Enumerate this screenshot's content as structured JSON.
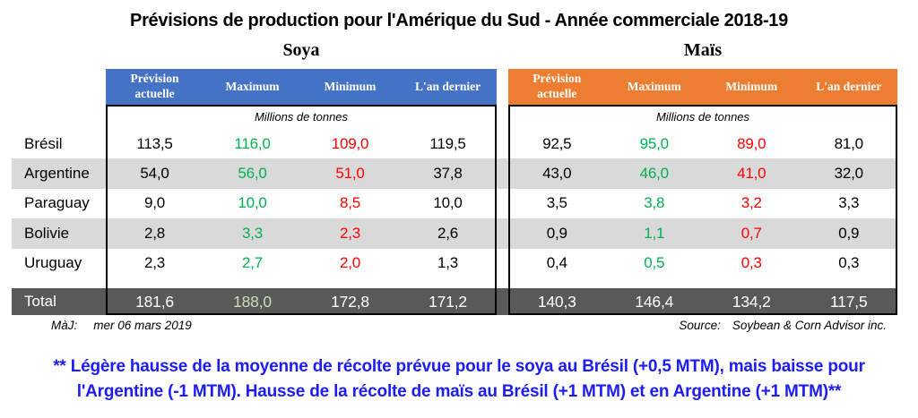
{
  "title": "Prévisions de production pour l'Amérique du Sud - Année commerciale 2018-19",
  "sections": [
    {
      "name": "Soya",
      "accent": "#4472C4",
      "columns": [
        "Prévision actuelle",
        "Maximum",
        "Minimum",
        "L'an dernier"
      ]
    },
    {
      "name": "Maïs",
      "accent": "#ED7D31",
      "columns": [
        "Prévision actuelle",
        "Maximum",
        "Minimum",
        "L'an dernier"
      ]
    }
  ],
  "unit_label": "Millions de tonnes",
  "rows": [
    {
      "label": "Brésil",
      "soya": [
        "113,5",
        "116,0",
        "109,0",
        "119,5"
      ],
      "mais": [
        "92,5",
        "95,0",
        "89,0",
        "81,0"
      ]
    },
    {
      "label": "Argentine",
      "soya": [
        "54,0",
        "56,0",
        "51,0",
        "37,8"
      ],
      "mais": [
        "43,0",
        "46,0",
        "41,0",
        "32,0"
      ]
    },
    {
      "label": "Paraguay",
      "soya": [
        "9,0",
        "10,0",
        "8,5",
        "10,0"
      ],
      "mais": [
        "3,5",
        "3,8",
        "3,2",
        "3,3"
      ]
    },
    {
      "label": "Bolivie",
      "soya": [
        "2,8",
        "3,3",
        "2,3",
        "2,6"
      ],
      "mais": [
        "0,9",
        "1,1",
        "0,7",
        "0,9"
      ]
    },
    {
      "label": "Uruguay",
      "soya": [
        "2,3",
        "2,7",
        "2,0",
        "1,3"
      ],
      "mais": [
        "0,4",
        "0,5",
        "0,3",
        "0,3"
      ]
    }
  ],
  "total": {
    "label": "Total",
    "soya": [
      "181,6",
      "188,0",
      "172,8",
      "171,2"
    ],
    "mais": [
      "140,3",
      "146,4",
      "134,2",
      "117,5"
    ]
  },
  "total_colors": {
    "soya": [
      "#FFFFFF",
      "#C6E0B4",
      "#FFFFFF",
      "#FFFFFF"
    ],
    "mais": [
      "#FFFFFF",
      "#FFFFFF",
      "#FFFFFF",
      "#FFFFFF"
    ]
  },
  "footer": {
    "updated_label": "MàJ:",
    "updated_value": "mer 06 mars 2019",
    "source_label": "Source:",
    "source_value": "Soybean & Corn Advisor inc."
  },
  "note": {
    "line1": "** Légère hausse de la moyenne de récolte prévue pour le soya au Brésil (+0,5 MTM), mais baisse pour",
    "line2": "l'Argentine (-1 MTM). Hausse de la récolte de maïs au Brésil (+1 MTM) et en Argentine (+1 MTM)**"
  },
  "colors": {
    "header_blue": "#4472C4",
    "header_orange": "#ED7D31",
    "stripe": "#D9D9D9",
    "total_bg": "#595959",
    "max_green": "#00B050",
    "min_red": "#FF0000",
    "note_blue": "#1C1CF5"
  }
}
